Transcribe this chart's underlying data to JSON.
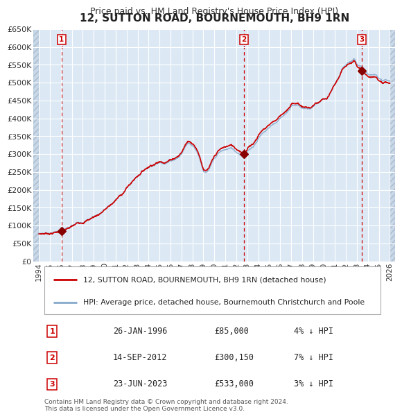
{
  "title": "12, SUTTON ROAD, BOURNEMOUTH, BH9 1RN",
  "subtitle": "Price paid vs. HM Land Registry's House Price Index (HPI)",
  "title_fontsize": 11,
  "subtitle_fontsize": 9,
  "plot_bg_color": "#dce9f5",
  "grid_color": "#ffffff",
  "hatch_color": "#c8d8e8",
  "sale_dates": [
    "1996-01-26",
    "2012-09-14",
    "2023-06-23"
  ],
  "sale_prices": [
    85000,
    300150,
    533000
  ],
  "sale_labels": [
    "1",
    "2",
    "3"
  ],
  "legend_house": "12, SUTTON ROAD, BOURNEMOUTH, BH9 1RN (detached house)",
  "legend_hpi": "HPI: Average price, detached house, Bournemouth Christchurch and Poole",
  "table_rows": [
    {
      "label": "1",
      "date": "26-JAN-1996",
      "price": "£85,000",
      "note": "4% ↓ HPI"
    },
    {
      "label": "2",
      "date": "14-SEP-2012",
      "price": "£300,150",
      "note": "7% ↓ HPI"
    },
    {
      "label": "3",
      "date": "23-JUN-2023",
      "price": "£533,000",
      "note": "3% ↓ HPI"
    }
  ],
  "footer": "Contains HM Land Registry data © Crown copyright and database right 2024.\nThis data is licensed under the Open Government Licence v3.0.",
  "house_line_color": "#cc0000",
  "hpi_line_color": "#88aacc",
  "sale_dot_color": "#880000",
  "vline_color": "#cc0000",
  "ylim": [
    0,
    650000
  ],
  "yticks": [
    0,
    50000,
    100000,
    150000,
    200000,
    250000,
    300000,
    350000,
    400000,
    450000,
    500000,
    550000,
    600000,
    650000
  ],
  "data_xstart": 1994.0,
  "data_xend": 2026.0,
  "xlim_start": 1993.5,
  "xlim_end": 2026.5,
  "xticks": [
    1994,
    1995,
    1996,
    1997,
    1998,
    1999,
    2000,
    2001,
    2002,
    2003,
    2004,
    2005,
    2006,
    2007,
    2008,
    2009,
    2010,
    2011,
    2012,
    2013,
    2014,
    2015,
    2016,
    2017,
    2018,
    2019,
    2020,
    2021,
    2022,
    2023,
    2024,
    2025,
    2026
  ]
}
